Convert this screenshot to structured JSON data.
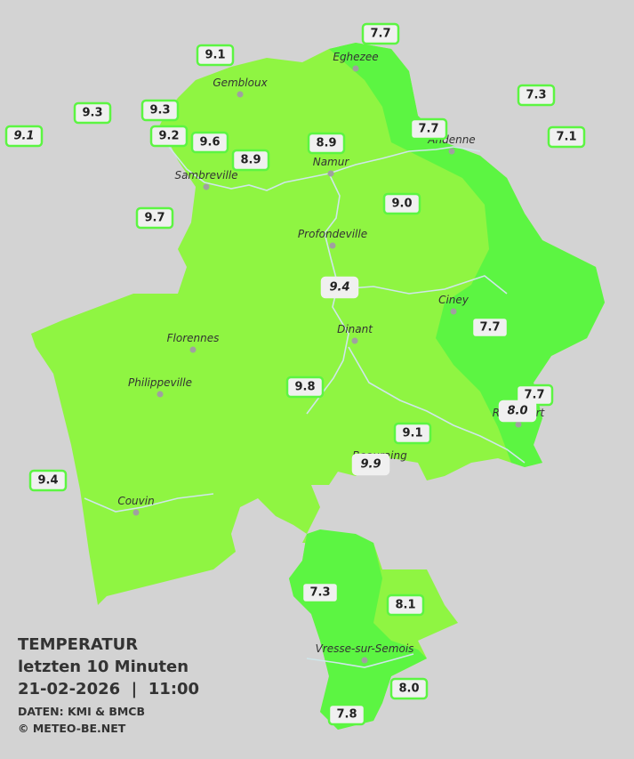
{
  "legend": {
    "title": "TEMPERATUR",
    "period": "letzten 10 Minuten",
    "datetime": "21-02-2026  |  11:00",
    "source": "DATEN: KMI & BMCB",
    "copyright": "© METEO-BE.NET"
  },
  "cities": [
    "Eghezee",
    "Gembloux",
    "Andenne",
    "Namur",
    "Sambreville",
    "Profondeville",
    "Ciney",
    "Dinant",
    "Florennes",
    "Philippeville",
    "Rochefort",
    "Beauraing",
    "Couvin",
    "Vresse-sur-Semois"
  ],
  "stations": [
    "7.7",
    "9.1",
    "7.3",
    "9.3",
    "9.3",
    "9.1",
    "9.2",
    "9.6",
    "8.9",
    "7.7",
    "7.1",
    "8.9",
    "9.0",
    "9.7",
    "9.4",
    "7.7",
    "9.8",
    "7.7",
    "8.0",
    "9.1",
    "9.9",
    "9.4",
    "7.3",
    "8.1",
    "8.0",
    "7.8"
  ]
}
